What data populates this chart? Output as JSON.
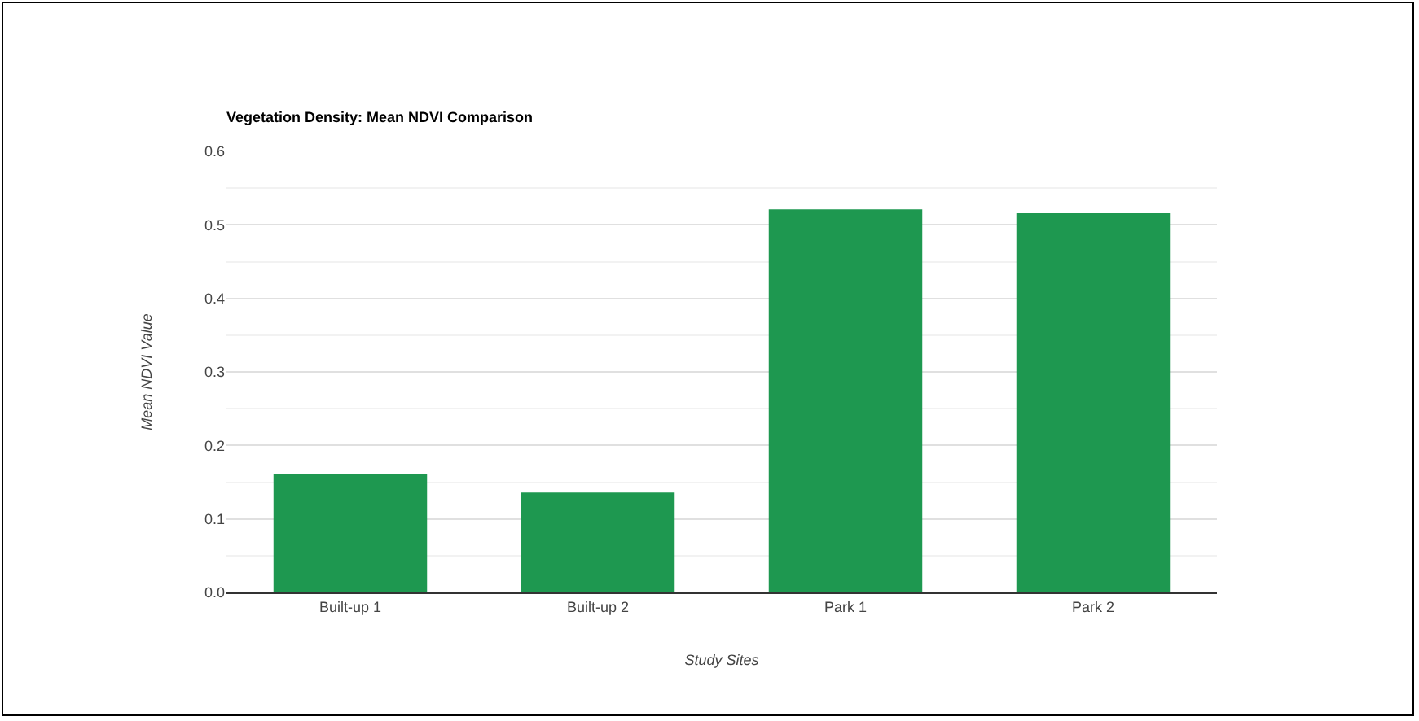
{
  "chart_data": {
    "type": "bar",
    "title": "Vegetation Density: Mean NDVI Comparison",
    "xlabel": "Study Sites",
    "ylabel": "Mean NDVI Value",
    "categories": [
      "Built-up 1",
      "Built-up 2",
      "Park 1",
      "Park 2"
    ],
    "values": [
      0.161,
      0.136,
      0.521,
      0.516
    ],
    "color": "#1e9850",
    "ylim": [
      0,
      0.6
    ],
    "yticks": [
      {
        "value": 0,
        "label": "0.0"
      },
      0.1,
      0.2,
      0.3,
      0.4,
      0.5,
      0.6
    ],
    "grid": "y"
  }
}
